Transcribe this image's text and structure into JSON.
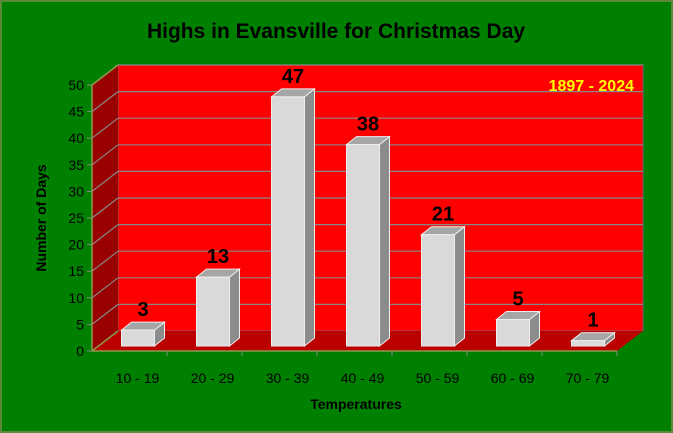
{
  "chart_data": {
    "type": "bar",
    "title": "Highs in Evansville for Christmas Day",
    "annotation": "1897 - 2024",
    "xlabel": "Temperatures",
    "ylabel": "Number of Days",
    "categories": [
      "10 - 19",
      "20 - 29",
      "30 - 39",
      "40 - 49",
      "50 - 59",
      "60 - 69",
      "70 - 79"
    ],
    "values": [
      3,
      13,
      47,
      38,
      21,
      5,
      1
    ],
    "ylim": [
      0,
      50
    ],
    "yticks": [
      0,
      5,
      10,
      15,
      20,
      25,
      30,
      35,
      40,
      45,
      50
    ],
    "grid": true,
    "style": "3d",
    "colors": {
      "background": "#008000",
      "wall": "#ff0000",
      "side_wall": "#990000",
      "floor": "#bb0000",
      "bar": "#d9d9d9",
      "annotation": "#ffff00"
    }
  }
}
